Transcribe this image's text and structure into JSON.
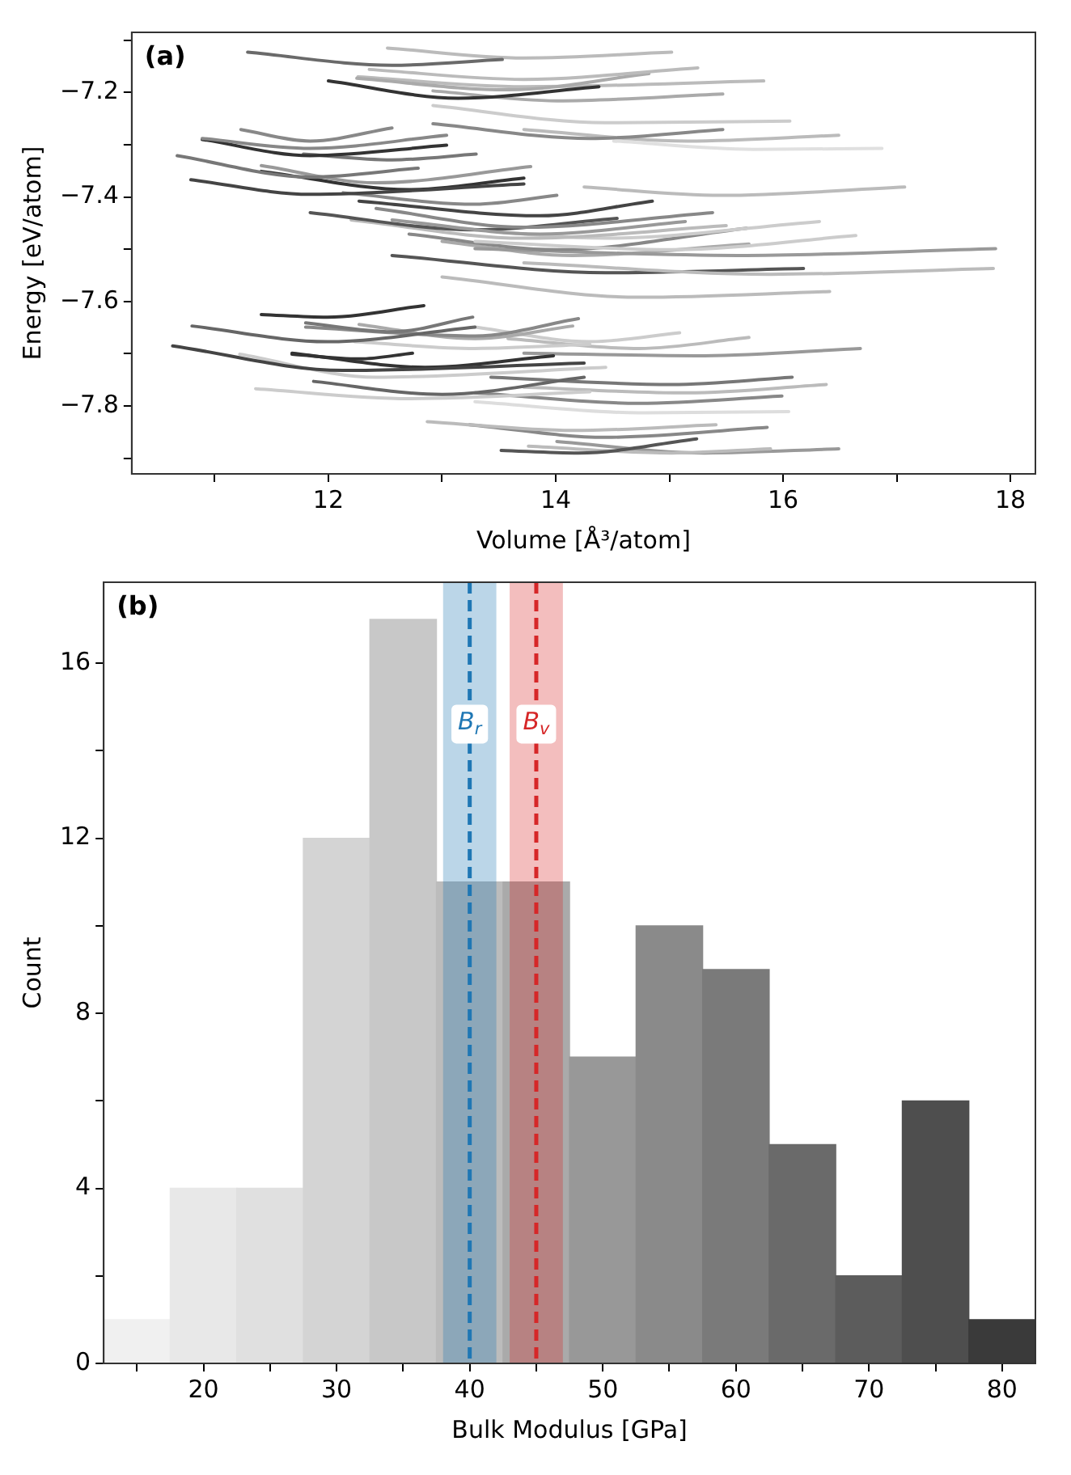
{
  "chart_data": [
    {
      "type": "line",
      "xlabel": "Volume [Å³/atom]",
      "ylabel": "Energy [eV/atom]",
      "annotations": [
        "(a)"
      ],
      "xlim": [
        10.27,
        18.22
      ],
      "ylim": [
        -7.93,
        -7.085
      ],
      "xticks": [
        {
          "value": 11,
          "label": null
        },
        12,
        {
          "value": 13,
          "label": null
        },
        14,
        {
          "value": 15,
          "label": null
        },
        16,
        {
          "value": 17,
          "label": null
        },
        18
      ],
      "yticks": [
        {
          "value": -7.9,
          "label": null
        },
        {
          "value": -7.8,
          "label": "−7.8"
        },
        {
          "value": -7.7,
          "label": null
        },
        {
          "value": -7.6,
          "label": "−7.6"
        },
        {
          "value": -7.5,
          "label": null
        },
        {
          "value": -7.4,
          "label": "−7.4"
        },
        {
          "value": -7.3,
          "label": null
        },
        {
          "value": -7.2,
          "label": "−7.2"
        },
        {
          "value": -7.1,
          "label": null
        }
      ],
      "series": [
        {
          "color": "#6a6a6a",
          "x": [
            11.29,
            12.56,
            13.53
          ],
          "values": [
            -7.123,
            -7.148,
            -7.137
          ]
        },
        {
          "color": "#bbbbbb",
          "x": [
            12.52,
            13.72,
            15.02
          ],
          "values": [
            -7.115,
            -7.134,
            -7.123
          ]
        },
        {
          "color": "#bbbbbb",
          "x": [
            12.36,
            13.72,
            15.25
          ],
          "values": [
            -7.156,
            -7.175,
            -7.153
          ]
        },
        {
          "color": "#aaaaaa",
          "x": [
            12.25,
            13.58,
            14.82
          ],
          "values": [
            -7.173,
            -7.195,
            -7.164
          ]
        },
        {
          "color": "#333333",
          "x": [
            12.0,
            13.14,
            14.38
          ],
          "values": [
            -7.178,
            -7.211,
            -7.189
          ]
        },
        {
          "color": "#bbbbbb",
          "x": [
            12.26,
            13.72,
            15.83
          ],
          "values": [
            -7.17,
            -7.189,
            -7.178
          ]
        },
        {
          "color": "#aaaaaa",
          "x": [
            12.92,
            14.01,
            15.47
          ],
          "values": [
            -7.197,
            -7.216,
            -7.203
          ]
        },
        {
          "color": "#cccccc",
          "x": [
            12.92,
            14.44,
            16.06
          ],
          "values": [
            -7.225,
            -7.258,
            -7.255
          ]
        },
        {
          "color": "#888888",
          "x": [
            12.92,
            14.3,
            15.47
          ],
          "values": [
            -7.26,
            -7.288,
            -7.271
          ]
        },
        {
          "color": "#bbbbbb",
          "x": [
            13.72,
            15.16,
            16.49
          ],
          "values": [
            -7.271,
            -7.293,
            -7.282
          ]
        },
        {
          "color": "#e0e0e0",
          "x": [
            14.51,
            15.74,
            16.87
          ],
          "values": [
            -7.293,
            -7.309,
            -7.307
          ]
        },
        {
          "color": "#888888",
          "x": [
            11.23,
            11.84,
            12.56
          ],
          "values": [
            -7.271,
            -7.293,
            -7.268
          ]
        },
        {
          "color": "#888888",
          "x": [
            10.89,
            11.84,
            13.04
          ],
          "values": [
            -7.288,
            -7.307,
            -7.282
          ]
        },
        {
          "color": "#333333",
          "x": [
            10.89,
            11.84,
            13.04
          ],
          "values": [
            -7.29,
            -7.321,
            -7.301
          ]
        },
        {
          "color": "#777777",
          "x": [
            11.78,
            12.56,
            13.3
          ],
          "values": [
            -7.318,
            -7.329,
            -7.318
          ]
        },
        {
          "color": "#777777",
          "x": [
            10.67,
            11.84,
            12.79
          ],
          "values": [
            -7.321,
            -7.362,
            -7.345
          ]
        },
        {
          "color": "#444444",
          "x": [
            10.79,
            11.84,
            13.72
          ],
          "values": [
            -7.367,
            -7.395,
            -7.375
          ]
        },
        {
          "color": "#999999",
          "x": [
            11.41,
            12.42,
            13.78
          ],
          "values": [
            -7.34,
            -7.373,
            -7.342
          ]
        },
        {
          "color": "#333333",
          "x": [
            11.41,
            12.71,
            13.72
          ],
          "values": [
            -7.351,
            -7.386,
            -7.364
          ]
        },
        {
          "color": "#888888",
          "x": [
            12.13,
            13.29,
            14.01
          ],
          "values": [
            -7.392,
            -7.414,
            -7.397
          ]
        },
        {
          "color": "#bbbbbb",
          "x": [
            14.25,
            15.45,
            17.07
          ],
          "values": [
            -7.381,
            -7.397,
            -7.381
          ]
        },
        {
          "color": "#444444",
          "x": [
            12.27,
            13.86,
            14.85
          ],
          "values": [
            -7.408,
            -7.436,
            -7.408
          ]
        },
        {
          "color": "#888888",
          "x": [
            12.42,
            13.72,
            15.38
          ],
          "values": [
            -7.422,
            -7.458,
            -7.43
          ]
        },
        {
          "color": "#999999",
          "x": [
            12.56,
            13.86,
            15.14
          ],
          "values": [
            -7.444,
            -7.471,
            -7.447
          ]
        },
        {
          "color": "#555555",
          "x": [
            11.84,
            13.29,
            14.54
          ],
          "values": [
            -7.43,
            -7.463,
            -7.441
          ]
        },
        {
          "color": "#bbbbbb",
          "x": [
            12.2,
            13.72,
            15.5
          ],
          "values": [
            -7.444,
            -7.479,
            -7.455
          ]
        },
        {
          "color": "#cccccc",
          "x": [
            12.78,
            14.44,
            16.32
          ],
          "values": [
            -7.452,
            -7.479,
            -7.447
          ]
        },
        {
          "color": "#cccccc",
          "x": [
            13.29,
            15.02,
            16.64
          ],
          "values": [
            -7.485,
            -7.501,
            -7.474
          ]
        },
        {
          "color": "#888888",
          "x": [
            12.71,
            14.01,
            15.68
          ],
          "values": [
            -7.471,
            -7.501,
            -7.46
          ]
        },
        {
          "color": "#999999",
          "x": [
            13.29,
            15.6,
            17.87
          ],
          "values": [
            -7.499,
            -7.512,
            -7.499
          ]
        },
        {
          "color": "#aaaaaa",
          "x": [
            13.0,
            14.15,
            15.7
          ],
          "values": [
            -7.485,
            -7.512,
            -7.49
          ]
        },
        {
          "color": "#bbbbbb",
          "x": [
            13.72,
            15.89,
            17.85
          ],
          "values": [
            -7.526,
            -7.548,
            -7.537
          ]
        },
        {
          "color": "#555555",
          "x": [
            12.56,
            14.44,
            16.18
          ],
          "values": [
            -7.512,
            -7.545,
            -7.537
          ]
        },
        {
          "color": "#bbbbbb",
          "x": [
            13.0,
            14.73,
            16.41
          ],
          "values": [
            -7.553,
            -7.592,
            -7.581
          ]
        },
        {
          "color": "#333333",
          "x": [
            11.41,
            11.99,
            12.84
          ],
          "values": [
            -7.625,
            -7.63,
            -7.608
          ]
        },
        {
          "color": "#666666",
          "x": [
            10.8,
            11.99,
            13.29
          ],
          "values": [
            -7.647,
            -7.677,
            -7.649
          ]
        },
        {
          "color": "#777777",
          "x": [
            11.8,
            12.56,
            13.27
          ],
          "values": [
            -7.641,
            -7.658,
            -7.63
          ]
        },
        {
          "color": "#888888",
          "x": [
            11.8,
            13.29,
            14.2
          ],
          "values": [
            -7.649,
            -7.666,
            -7.633
          ]
        },
        {
          "color": "#aaaaaa",
          "x": [
            12.27,
            13.29,
            14.15
          ],
          "values": [
            -7.644,
            -7.671,
            -7.647
          ]
        },
        {
          "color": "#444444",
          "x": [
            10.63,
            12.13,
            14.25
          ],
          "values": [
            -7.685,
            -7.732,
            -7.718
          ]
        },
        {
          "color": "#333333",
          "x": [
            11.68,
            12.27,
            12.74
          ],
          "values": [
            -7.701,
            -7.71,
            -7.699
          ]
        },
        {
          "color": "#333333",
          "x": [
            11.68,
            12.85,
            13.98
          ],
          "values": [
            -7.699,
            -7.726,
            -7.704
          ]
        },
        {
          "color": "#cccccc",
          "x": [
            11.22,
            12.42,
            14.44
          ],
          "values": [
            -7.701,
            -7.745,
            -7.726
          ]
        },
        {
          "color": "#666666",
          "x": [
            11.87,
            13.0,
            14.25
          ],
          "values": [
            -7.753,
            -7.778,
            -7.745
          ]
        },
        {
          "color": "#cccccc",
          "x": [
            11.36,
            12.71,
            14.3
          ],
          "values": [
            -7.767,
            -7.786,
            -7.773
          ]
        },
        {
          "color": "#cccccc",
          "x": [
            12.23,
            13.29,
            14.3
          ],
          "values": [
            -7.677,
            -7.69,
            -7.682
          ]
        },
        {
          "color": "#cccccc",
          "x": [
            13.29,
            14.3,
            15.09
          ],
          "values": [
            -7.649,
            -7.677,
            -7.66
          ]
        },
        {
          "color": "#bbbbbb",
          "x": [
            13.58,
            14.73,
            15.7
          ],
          "values": [
            -7.671,
            -7.69,
            -7.669
          ]
        },
        {
          "color": "#999999",
          "x": [
            13.72,
            15.31,
            16.68
          ],
          "values": [
            -7.699,
            -7.704,
            -7.69
          ]
        },
        {
          "color": "#777777",
          "x": [
            13.43,
            15.02,
            16.08
          ],
          "values": [
            -7.745,
            -7.759,
            -7.745
          ]
        },
        {
          "color": "#bbbbbb",
          "x": [
            13.72,
            15.16,
            16.38
          ],
          "values": [
            -7.764,
            -7.775,
            -7.759
          ]
        },
        {
          "color": "#888888",
          "x": [
            13.29,
            14.73,
            15.99
          ],
          "values": [
            -7.775,
            -7.795,
            -7.781
          ]
        },
        {
          "color": "#dddddd",
          "x": [
            13.29,
            14.73,
            16.05
          ],
          "values": [
            -7.792,
            -7.813,
            -7.811
          ]
        },
        {
          "color": "#bbbbbb",
          "x": [
            12.87,
            14.15,
            15.41
          ],
          "values": [
            -7.83,
            -7.847,
            -7.836
          ]
        },
        {
          "color": "#888888",
          "x": [
            13.24,
            14.44,
            15.86
          ],
          "values": [
            -7.836,
            -7.86,
            -7.841
          ]
        },
        {
          "color": "#555555",
          "x": [
            13.52,
            14.2,
            15.24
          ],
          "values": [
            -7.885,
            -7.89,
            -7.863
          ]
        },
        {
          "color": "#bbbbbb",
          "x": [
            13.76,
            15.02,
            15.89
          ],
          "values": [
            -7.877,
            -7.89,
            -7.882
          ]
        },
        {
          "color": "#999999",
          "x": [
            14.01,
            15.31,
            16.49
          ],
          "values": [
            -7.868,
            -7.89,
            -7.882
          ]
        }
      ]
    },
    {
      "type": "histogram",
      "xlabel": "Bulk Modulus [GPa]",
      "ylabel": "Count",
      "annotations": [
        "(b)"
      ],
      "xlim": [
        12.5,
        82.5
      ],
      "ylim": [
        0,
        17.85
      ],
      "xticks": [
        {
          "value": 15,
          "label": null
        },
        20,
        {
          "value": 25,
          "label": null
        },
        30,
        {
          "value": 35,
          "label": null
        },
        40,
        {
          "value": 45,
          "label": null
        },
        50,
        {
          "value": 55,
          "label": null
        },
        60,
        {
          "value": 65,
          "label": null
        },
        70,
        {
          "value": 75,
          "label": null
        },
        80
      ],
      "yticks": [
        0,
        {
          "value": 2,
          "label": null
        },
        4,
        {
          "value": 6,
          "label": null
        },
        8,
        {
          "value": 10,
          "label": null
        },
        12,
        {
          "value": 14,
          "label": null
        },
        16
      ],
      "bins": [
        12.5,
        17.5,
        22.5,
        27.5,
        32.5,
        37.5,
        42.5,
        47.5,
        52.5,
        57.5,
        62.5,
        67.5,
        72.5,
        77.5,
        82.5
      ],
      "values": [
        1,
        4,
        4,
        12,
        17,
        11,
        11,
        7,
        10,
        9,
        5,
        2,
        6,
        1
      ],
      "colors": [
        "#f0f0f0",
        "#e8e8e8",
        "#e0e0e0",
        "#d4d4d4",
        "#c8c8c8",
        "#bcbcbc",
        "#aaaaaa",
        "#989898",
        "#8a8a8a",
        "#7a7a7a",
        "#6a6a6a",
        "#5c5c5c",
        "#4e4e4e",
        "#3a3a3a"
      ],
      "bands": [
        {
          "axis": "x",
          "from": 38,
          "to": 42,
          "color": "#1f77b4"
        },
        {
          "axis": "x",
          "from": 43,
          "to": 47,
          "color": "#d62728"
        }
      ],
      "ref_lines": [
        {
          "axis": "x",
          "value": 40,
          "label": "B$_{r}$",
          "color": "#1f77b4",
          "line_style": "dashed"
        },
        {
          "axis": "x",
          "value": 45,
          "label": "B$_{v}$",
          "color": "#d62728",
          "line_style": "dashed"
        }
      ]
    }
  ]
}
